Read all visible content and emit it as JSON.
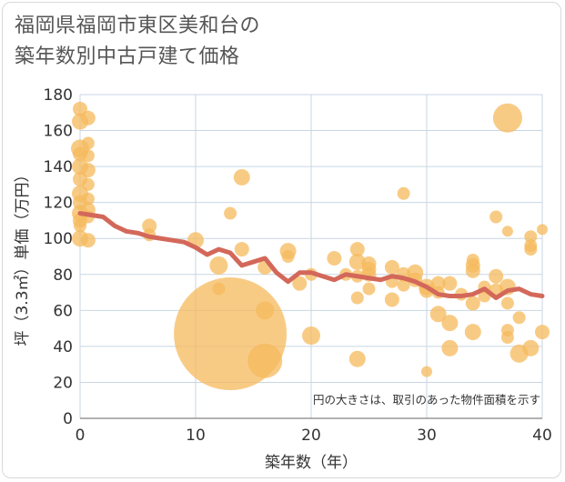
{
  "title": "福岡県福岡市東区美和台の\n築年数別中古戸建て価格",
  "colors": {
    "bubble": "#f5b95c",
    "line": "#d3685a",
    "grid": "#c8d6e2"
  },
  "chart_data": {
    "type": "scatter",
    "title": "福岡県福岡市東区美和台の 築年数別中古戸建て価格",
    "xlabel": "築年数（年）",
    "ylabel": "坪（3.3㎡）単価（万円）",
    "xlim": [
      0,
      40
    ],
    "ylim": [
      0,
      180
    ],
    "xticks": [
      0,
      10,
      20,
      30,
      40
    ],
    "yticks": [
      0,
      20,
      40,
      60,
      80,
      100,
      120,
      140,
      160,
      180
    ],
    "grid": true,
    "note": "円の大きさは、取引のあった物件面積を示す",
    "points": [
      {
        "x": 0,
        "y": 172,
        "r": 8
      },
      {
        "x": 0,
        "y": 165,
        "r": 9
      },
      {
        "x": 0,
        "y": 150,
        "r": 10
      },
      {
        "x": 0,
        "y": 147,
        "r": 8
      },
      {
        "x": 0,
        "y": 140,
        "r": 9
      },
      {
        "x": 0,
        "y": 133,
        "r": 8
      },
      {
        "x": 0,
        "y": 125,
        "r": 9
      },
      {
        "x": 0,
        "y": 120,
        "r": 8
      },
      {
        "x": 0,
        "y": 114,
        "r": 9
      },
      {
        "x": 0,
        "y": 110,
        "r": 8
      },
      {
        "x": 0,
        "y": 100,
        "r": 9
      },
      {
        "x": 0,
        "y": 107,
        "r": 7
      },
      {
        "x": 0.7,
        "y": 167,
        "r": 8
      },
      {
        "x": 0.7,
        "y": 153,
        "r": 7
      },
      {
        "x": 0.7,
        "y": 146,
        "r": 7
      },
      {
        "x": 0.7,
        "y": 138,
        "r": 8
      },
      {
        "x": 0.7,
        "y": 130,
        "r": 7
      },
      {
        "x": 0.7,
        "y": 122,
        "r": 7
      },
      {
        "x": 0.7,
        "y": 116,
        "r": 8
      },
      {
        "x": 0.7,
        "y": 112,
        "r": 7
      },
      {
        "x": 0.7,
        "y": 99,
        "r": 8
      },
      {
        "x": 6,
        "y": 107,
        "r": 8
      },
      {
        "x": 6,
        "y": 102,
        "r": 7
      },
      {
        "x": 10,
        "y": 99,
        "r": 9
      },
      {
        "x": 12,
        "y": 85,
        "r": 10
      },
      {
        "x": 12,
        "y": 72,
        "r": 7
      },
      {
        "x": 13,
        "y": 114,
        "r": 7
      },
      {
        "x": 13,
        "y": 47,
        "r": 62
      },
      {
        "x": 14,
        "y": 134,
        "r": 9
      },
      {
        "x": 14,
        "y": 94,
        "r": 8
      },
      {
        "x": 16,
        "y": 60,
        "r": 10
      },
      {
        "x": 16,
        "y": 84,
        "r": 8
      },
      {
        "x": 16,
        "y": 32,
        "r": 19
      },
      {
        "x": 18,
        "y": 93,
        "r": 9
      },
      {
        "x": 18,
        "y": 90,
        "r": 7
      },
      {
        "x": 19,
        "y": 75,
        "r": 8
      },
      {
        "x": 20,
        "y": 46,
        "r": 10
      },
      {
        "x": 20,
        "y": 80,
        "r": 7
      },
      {
        "x": 22,
        "y": 89,
        "r": 8
      },
      {
        "x": 23,
        "y": 80,
        "r": 7
      },
      {
        "x": 24,
        "y": 94,
        "r": 8
      },
      {
        "x": 24,
        "y": 87,
        "r": 9
      },
      {
        "x": 24,
        "y": 79,
        "r": 7
      },
      {
        "x": 24,
        "y": 67,
        "r": 7
      },
      {
        "x": 24,
        "y": 33,
        "r": 9
      },
      {
        "x": 25,
        "y": 86,
        "r": 8
      },
      {
        "x": 25,
        "y": 83,
        "r": 8
      },
      {
        "x": 25,
        "y": 80,
        "r": 8
      },
      {
        "x": 25,
        "y": 72,
        "r": 7
      },
      {
        "x": 27,
        "y": 84,
        "r": 8
      },
      {
        "x": 27,
        "y": 76,
        "r": 7
      },
      {
        "x": 27,
        "y": 66,
        "r": 8
      },
      {
        "x": 28,
        "y": 125,
        "r": 7
      },
      {
        "x": 28,
        "y": 80,
        "r": 8
      },
      {
        "x": 28,
        "y": 74,
        "r": 7
      },
      {
        "x": 29,
        "y": 81,
        "r": 9
      },
      {
        "x": 29,
        "y": 77,
        "r": 8
      },
      {
        "x": 30,
        "y": 73,
        "r": 9
      },
      {
        "x": 30,
        "y": 71,
        "r": 8
      },
      {
        "x": 30,
        "y": 26,
        "r": 6
      },
      {
        "x": 31,
        "y": 75,
        "r": 8
      },
      {
        "x": 31,
        "y": 70,
        "r": 7
      },
      {
        "x": 31,
        "y": 58,
        "r": 9
      },
      {
        "x": 32,
        "y": 75,
        "r": 8
      },
      {
        "x": 32,
        "y": 53,
        "r": 9
      },
      {
        "x": 32,
        "y": 39,
        "r": 9
      },
      {
        "x": 33,
        "y": 69,
        "r": 7
      },
      {
        "x": 34,
        "y": 88,
        "r": 7
      },
      {
        "x": 34,
        "y": 85,
        "r": 8
      },
      {
        "x": 34,
        "y": 82,
        "r": 8
      },
      {
        "x": 34,
        "y": 64,
        "r": 8
      },
      {
        "x": 34,
        "y": 48,
        "r": 9
      },
      {
        "x": 35,
        "y": 73,
        "r": 7
      },
      {
        "x": 35,
        "y": 68,
        "r": 7
      },
      {
        "x": 36,
        "y": 112,
        "r": 7
      },
      {
        "x": 36,
        "y": 79,
        "r": 8
      },
      {
        "x": 36,
        "y": 71,
        "r": 8
      },
      {
        "x": 37,
        "y": 167,
        "r": 16
      },
      {
        "x": 37,
        "y": 104,
        "r": 6
      },
      {
        "x": 37,
        "y": 73,
        "r": 9
      },
      {
        "x": 37,
        "y": 64,
        "r": 7
      },
      {
        "x": 37,
        "y": 49,
        "r": 7
      },
      {
        "x": 37,
        "y": 45,
        "r": 7
      },
      {
        "x": 38,
        "y": 56,
        "r": 7
      },
      {
        "x": 38,
        "y": 36,
        "r": 10
      },
      {
        "x": 39,
        "y": 101,
        "r": 7
      },
      {
        "x": 39,
        "y": 96,
        "r": 7
      },
      {
        "x": 39,
        "y": 94,
        "r": 7
      },
      {
        "x": 39,
        "y": 39,
        "r": 9
      },
      {
        "x": 40,
        "y": 105,
        "r": 6
      },
      {
        "x": 40,
        "y": 48,
        "r": 8
      }
    ],
    "trend": {
      "x": [
        0,
        1,
        2,
        3,
        4,
        5,
        6,
        7,
        8,
        9,
        10,
        11,
        12,
        13,
        14,
        15,
        16,
        17,
        18,
        19,
        20,
        21,
        22,
        23,
        24,
        25,
        26,
        27,
        28,
        29,
        30,
        31,
        32,
        33,
        34,
        35,
        36,
        37,
        38,
        39,
        40
      ],
      "y": [
        114,
        113,
        112,
        107,
        104,
        103,
        101,
        100,
        99,
        98,
        95,
        91,
        94,
        92,
        85,
        87,
        89,
        81,
        76,
        81,
        81,
        79,
        77,
        80,
        79,
        78,
        77,
        79,
        78,
        76,
        73,
        69,
        68,
        68,
        69,
        72,
        67,
        71,
        72,
        69,
        68
      ]
    }
  }
}
